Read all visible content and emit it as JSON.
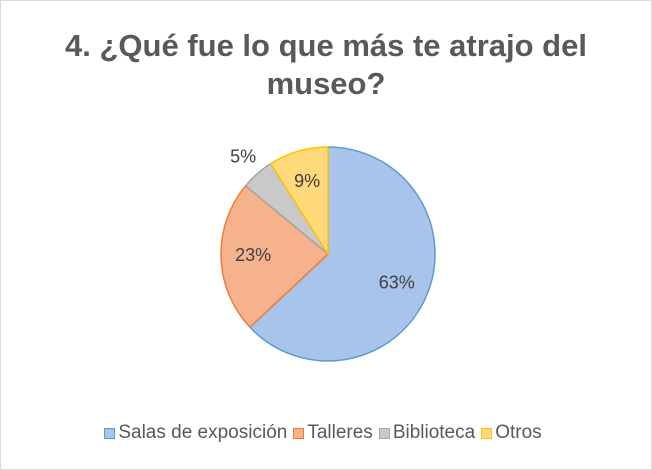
{
  "chart_data": {
    "type": "pie",
    "title": "4. ¿Qué fue lo que más te atrajo del museo?",
    "categories": [
      "Salas de exposición",
      "Talleres",
      "Biblioteca",
      "Otros"
    ],
    "values": [
      63,
      23,
      5,
      9
    ],
    "value_labels": [
      "63%",
      "23%",
      "5%",
      "9%"
    ],
    "colors": [
      "#a9c4ea",
      "#f5b28c",
      "#c9c9c9",
      "#ffd97a"
    ],
    "edge_colors": [
      "#5b9bd5",
      "#ed7d31",
      "#a5a5a5",
      "#ffc000"
    ],
    "legend": "bottom"
  }
}
